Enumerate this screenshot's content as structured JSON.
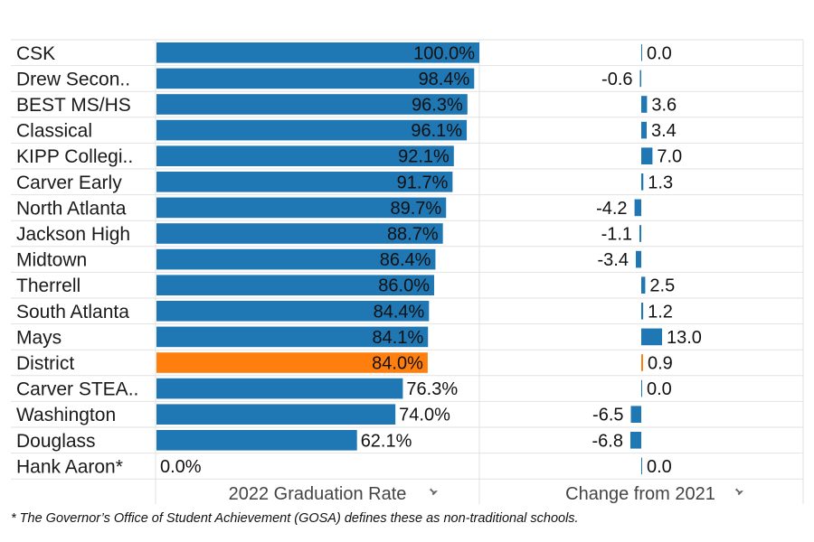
{
  "chart_data": {
    "type": "bar",
    "categories": [
      "CSK",
      "Drew Secon..",
      "BEST MS/HS",
      "Classical",
      "KIPP Collegi..",
      "Carver Early",
      "North Atlanta",
      "Jackson High",
      "Midtown",
      "Therrell",
      "South Atlanta",
      "Mays",
      "District",
      "Carver STEA..",
      "Washington",
      "Douglass",
      "Hank Aaron*"
    ],
    "highlight_category": "District",
    "panels": [
      {
        "name": "2022 Graduation Rate",
        "values": [
          100.0,
          98.4,
          96.3,
          96.1,
          92.1,
          91.7,
          89.7,
          88.7,
          86.4,
          86.0,
          84.4,
          84.1,
          84.0,
          76.3,
          74.0,
          62.1,
          0.0
        ],
        "labels": [
          "100.0%",
          "98.4%",
          "96.3%",
          "96.1%",
          "92.1%",
          "91.7%",
          "89.7%",
          "88.7%",
          "86.4%",
          "86.0%",
          "84.4%",
          "84.1%",
          "84.0%",
          "76.3%",
          "74.0%",
          "62.1%",
          "0.0%"
        ],
        "xlim": [
          0,
          100
        ]
      },
      {
        "name": "Change from 2021",
        "values": [
          0.0,
          -0.6,
          3.6,
          3.4,
          7.0,
          1.3,
          -4.2,
          -1.1,
          -3.4,
          2.5,
          1.2,
          13.0,
          0.9,
          0.0,
          -6.5,
          -6.8,
          0.0
        ],
        "labels": [
          "0.0",
          "-0.6",
          "3.6",
          "3.4",
          "7.0",
          "1.3",
          "-4.2",
          "-1.1",
          "-3.4",
          "2.5",
          "1.2",
          "13.0",
          "0.9",
          "0.0",
          "-6.5",
          "-6.8",
          "0.0"
        ]
      }
    ],
    "colors": {
      "bar": "#1f77b4",
      "highlight": "#ff7f0e",
      "grid": "#e2e2e2",
      "text": "#1a1a1a",
      "header": "#444444"
    },
    "pin_icon": "pin-icon",
    "footnote": "* The Governor’s Office of Student Achievement (GOSA) defines these as non-traditional schools."
  }
}
